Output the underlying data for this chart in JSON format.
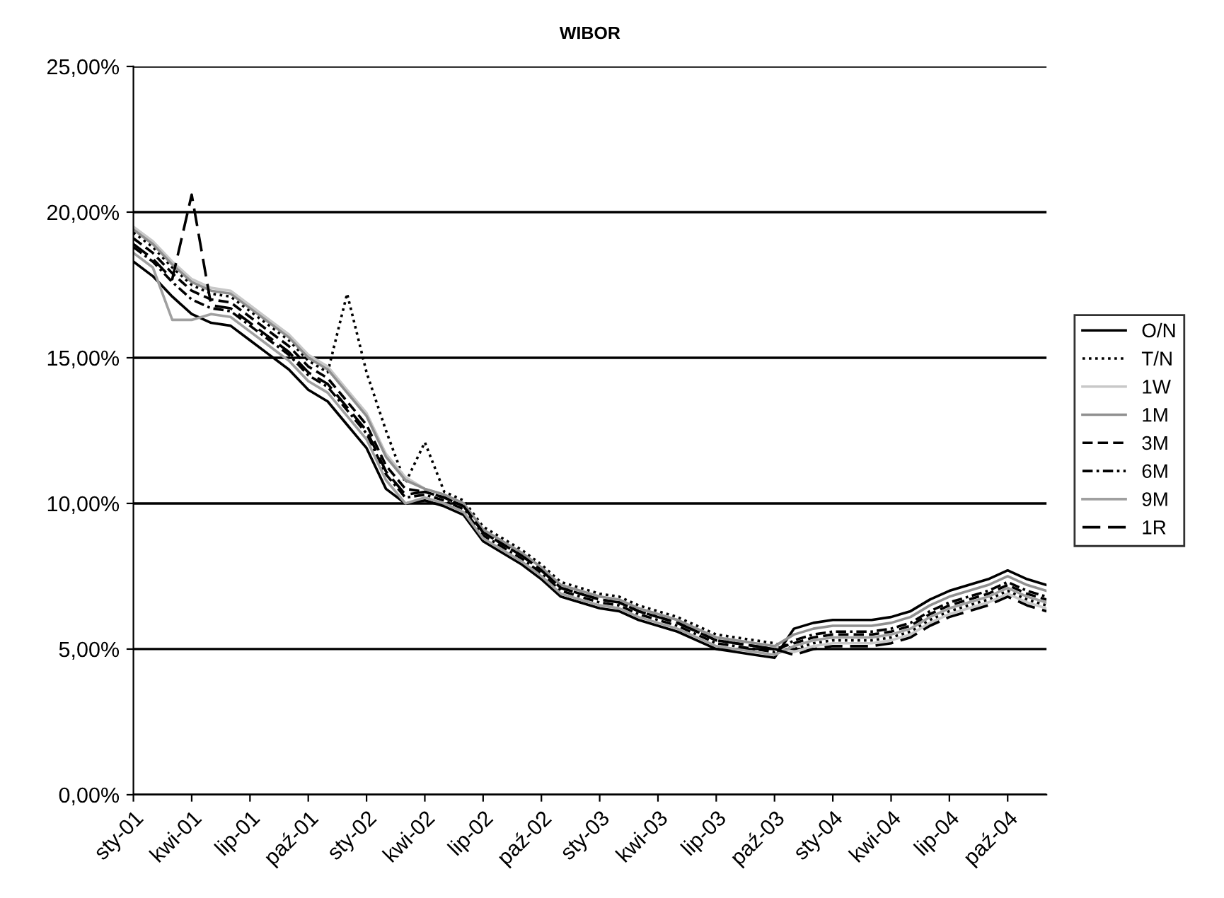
{
  "chart_data": {
    "type": "line",
    "title": "WIBOR",
    "categories": [
      "sty-01",
      null,
      null,
      "kwi-01",
      null,
      null,
      "lip-01",
      null,
      null,
      "paź-01",
      null,
      null,
      "sty-02",
      null,
      null,
      "kwi-02",
      null,
      null,
      "lip-02",
      null,
      null,
      "paź-02",
      null,
      null,
      "sty-03",
      null,
      null,
      "kwi-03",
      null,
      null,
      "lip-03",
      null,
      null,
      "paź-03",
      null,
      null,
      "sty-04",
      null,
      null,
      "kwi-04",
      null,
      null,
      "lip-04",
      null,
      null,
      "paź-04",
      null,
      null
    ],
    "ylim": [
      0,
      25
    ],
    "yticks": [
      {
        "value": 0,
        "label": "0,00%"
      },
      {
        "value": 5,
        "label": "5,00%"
      },
      {
        "value": 10,
        "label": "10,00%"
      },
      {
        "value": 15,
        "label": "15,00%"
      },
      {
        "value": 20,
        "label": "20,00%"
      },
      {
        "value": 25,
        "label": "25,00%"
      }
    ],
    "grid": "y",
    "legend": "right",
    "marker": "none",
    "series": [
      {
        "name": "O/N",
        "color": "#000000",
        "line_style": "solid",
        "values": [
          18.3,
          17.8,
          17.1,
          16.5,
          16.2,
          16.1,
          15.6,
          15.1,
          14.6,
          13.9,
          13.5,
          12.7,
          11.9,
          10.5,
          10.0,
          10.1,
          9.9,
          9.6,
          8.7,
          8.3,
          7.9,
          7.4,
          6.8,
          6.6,
          6.4,
          6.3,
          6.0,
          5.8,
          5.6,
          5.3,
          5.0,
          4.9,
          4.8,
          4.7,
          5.7,
          5.9,
          6.0,
          6.0,
          6.0,
          6.1,
          6.3,
          6.7,
          7.0,
          7.2,
          7.4,
          7.7,
          7.4,
          7.2
        ]
      },
      {
        "name": "T/N",
        "color": "#000000",
        "line_style": "dotted",
        "values": [
          19.3,
          18.8,
          18.1,
          17.5,
          17.2,
          17.1,
          16.6,
          16.1,
          15.6,
          14.9,
          14.5,
          17.2,
          14.5,
          12.5,
          10.7,
          12.1,
          10.4,
          10.1,
          9.2,
          8.8,
          8.4,
          7.9,
          7.3,
          7.1,
          6.9,
          6.8,
          6.5,
          6.3,
          6.1,
          5.8,
          5.5,
          5.4,
          5.3,
          5.2,
          5.0,
          5.2,
          5.3,
          5.3,
          5.3,
          5.4,
          5.6,
          6.0,
          6.3,
          6.5,
          6.7,
          7.0,
          6.7,
          6.5
        ]
      },
      {
        "name": "1W",
        "color": "#c8c8c8",
        "line_style": "solid",
        "values": [
          19.5,
          19.0,
          18.3,
          17.7,
          17.4,
          17.3,
          16.8,
          16.3,
          15.8,
          15.1,
          14.7,
          13.9,
          13.1,
          11.7,
          10.9,
          10.5,
          10.3,
          10.0,
          9.1,
          8.7,
          8.3,
          7.8,
          7.2,
          7.0,
          6.8,
          6.7,
          6.4,
          6.2,
          6.0,
          5.7,
          5.4,
          5.3,
          5.2,
          5.1,
          4.9,
          5.1,
          5.2,
          5.2,
          5.2,
          5.3,
          5.5,
          5.9,
          6.2,
          6.4,
          6.6,
          6.9,
          6.6,
          6.4
        ]
      },
      {
        "name": "1M",
        "color": "#909090",
        "line_style": "solid",
        "values": [
          19.4,
          18.9,
          18.2,
          17.6,
          17.3,
          17.2,
          16.7,
          16.2,
          15.7,
          15.0,
          14.6,
          13.8,
          13.0,
          11.6,
          10.8,
          10.5,
          10.3,
          10.0,
          9.1,
          8.7,
          8.3,
          7.8,
          7.2,
          7.0,
          6.8,
          6.7,
          6.4,
          6.2,
          6.0,
          5.7,
          5.4,
          5.3,
          5.2,
          5.1,
          5.5,
          5.7,
          5.8,
          5.8,
          5.8,
          5.9,
          6.1,
          6.5,
          6.8,
          7.0,
          7.2,
          7.5,
          7.2,
          7.0
        ]
      },
      {
        "name": "3M",
        "color": "#000000",
        "line_style": "dashed",
        "values": [
          19.1,
          18.6,
          17.9,
          17.3,
          17.0,
          16.9,
          16.4,
          15.9,
          15.4,
          14.7,
          14.3,
          13.5,
          12.7,
          11.3,
          10.5,
          10.4,
          10.2,
          9.9,
          9.0,
          8.6,
          8.2,
          7.7,
          7.1,
          6.9,
          6.7,
          6.6,
          6.3,
          6.1,
          5.9,
          5.6,
          5.3,
          5.2,
          5.1,
          5.0,
          5.2,
          5.4,
          5.5,
          5.5,
          5.5,
          5.6,
          5.8,
          6.2,
          6.5,
          6.7,
          6.9,
          7.2,
          6.9,
          6.7
        ]
      },
      {
        "name": "6M",
        "color": "#000000",
        "line_style": "dashdot",
        "values": [
          18.8,
          18.3,
          17.6,
          17.0,
          16.7,
          16.6,
          16.1,
          15.6,
          15.1,
          14.4,
          14.0,
          13.2,
          12.4,
          11.0,
          10.2,
          10.3,
          10.1,
          9.8,
          8.9,
          8.5,
          8.1,
          7.6,
          7.0,
          6.8,
          6.6,
          6.5,
          6.2,
          6.0,
          5.8,
          5.5,
          5.2,
          5.1,
          5.0,
          4.9,
          5.3,
          5.5,
          5.6,
          5.6,
          5.6,
          5.7,
          5.9,
          6.3,
          6.6,
          6.8,
          7.0,
          7.3,
          7.0,
          6.8
        ]
      },
      {
        "name": "9M",
        "color": "#a0a0a0",
        "line_style": "solid",
        "values": [
          18.6,
          18.1,
          16.3,
          16.3,
          16.5,
          16.4,
          15.9,
          15.4,
          14.9,
          14.2,
          13.8,
          13.0,
          12.2,
          10.8,
          10.0,
          10.2,
          10.0,
          9.7,
          8.8,
          8.4,
          8.0,
          7.5,
          6.9,
          6.7,
          6.5,
          6.4,
          6.1,
          5.9,
          5.7,
          5.4,
          5.1,
          5.0,
          4.9,
          4.8,
          5.1,
          5.3,
          5.4,
          5.4,
          5.4,
          5.5,
          5.7,
          6.1,
          6.4,
          6.6,
          6.8,
          7.1,
          6.8,
          6.6
        ]
      },
      {
        "name": "1R",
        "color": "#000000",
        "line_style": "longdash",
        "values": [
          18.9,
          18.4,
          17.7,
          20.6,
          16.8,
          16.7,
          16.2,
          15.7,
          15.2,
          14.5,
          14.1,
          13.3,
          12.5,
          11.1,
          10.3,
          10.4,
          10.2,
          9.9,
          9.0,
          8.6,
          8.2,
          7.7,
          7.1,
          6.9,
          6.7,
          6.6,
          6.3,
          6.1,
          5.9,
          5.6,
          5.3,
          5.2,
          5.1,
          5.0,
          4.8,
          5.0,
          5.1,
          5.1,
          5.1,
          5.2,
          5.4,
          5.8,
          6.1,
          6.3,
          6.5,
          6.8,
          6.5,
          6.3
        ]
      }
    ]
  }
}
